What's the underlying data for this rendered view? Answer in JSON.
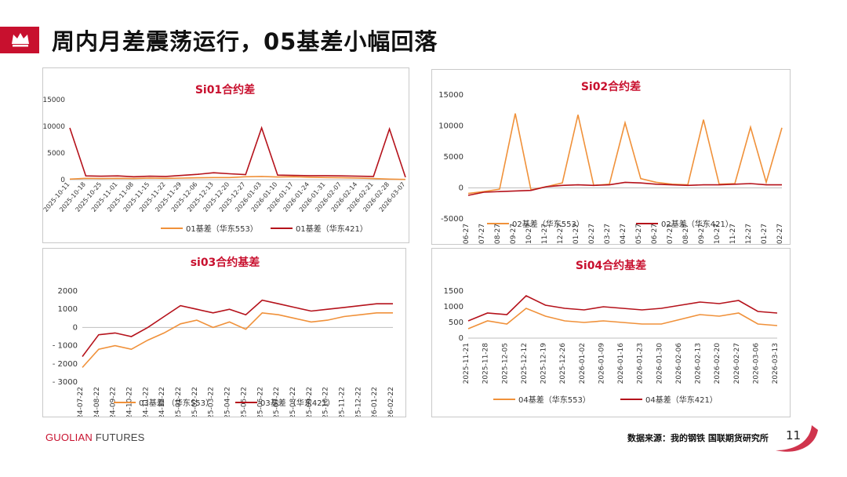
{
  "page": {
    "title": "周内月差震荡运行，05基差小幅回落",
    "brand_a": "GUOLIAN",
    "brand_b": " FUTURES",
    "source": "数据来源：我的钢铁  国联期货研究所",
    "page_number": "11"
  },
  "colors": {
    "accent": "#c8102e",
    "series_553": "#f0913a",
    "series_421": "#b5121b"
  },
  "chart_data": [
    {
      "id": "si01",
      "type": "line",
      "title": "Si01合约差",
      "ylim": [
        0,
        15000
      ],
      "yticks": [
        "0",
        "5000",
        "10000",
        "15000"
      ],
      "xticks": [
        "2025-10-11",
        "2025-10-18",
        "2025-10-25",
        "2025-11-01",
        "2025-11-08",
        "2025-11-15",
        "2025-11-22",
        "2025-11-29",
        "2025-12-06",
        "2025-12-13",
        "2025-12-20",
        "2025-12-27",
        "2026-01-03",
        "2026-01-10",
        "2026-01-17",
        "2026-01-24",
        "2026-01-31",
        "2026-02-07",
        "2026-02-14",
        "2026-02-21",
        "2026-02-28",
        "2026-03-07"
      ],
      "series": [
        {
          "name": "01基差（华东553）",
          "values": [
            100,
            250,
            200,
            250,
            200,
            300,
            250,
            300,
            350,
            400,
            400,
            550,
            600,
            500,
            550,
            450,
            400,
            350,
            300,
            200,
            100,
            50
          ]
        },
        {
          "name": "01基差（华东421）",
          "values": [
            9700,
            700,
            650,
            700,
            550,
            650,
            600,
            800,
            1000,
            1300,
            1100,
            950,
            9700,
            850,
            800,
            750,
            750,
            700,
            650,
            600,
            9500,
            450
          ]
        }
      ]
    },
    {
      "id": "si02",
      "type": "line",
      "title": "Si02合约差",
      "ylim": [
        -5000,
        15000
      ],
      "yticks": [
        "-5000",
        "0",
        "5000",
        "10000",
        "15000"
      ],
      "xticks": [
        "2024-06-27",
        "2024-07-27",
        "2024-08-27",
        "2024-09-27",
        "2024-10-27",
        "2024-11-27",
        "2024-12-27",
        "2025-01-27",
        "2025-02-27",
        "2025-03-27",
        "2025-04-27",
        "2025-05-27",
        "2025-06-27",
        "2025-07-27",
        "2025-08-27",
        "2025-09-27",
        "2025-10-27",
        "2025-11-27",
        "2025-12-27",
        "2026-01-27",
        "2026-02-27"
      ],
      "series": [
        {
          "name": "02基差（华东553）",
          "values": [
            -900,
            -600,
            -200,
            12000,
            -300,
            200,
            800,
            11800,
            400,
            600,
            10500,
            1500,
            900,
            600,
            500,
            11000,
            600,
            700,
            9800,
            900,
            9700
          ]
        },
        {
          "name": "02基差（华东421）",
          "values": [
            -1200,
            -700,
            -600,
            -500,
            -400,
            200,
            400,
            500,
            400,
            500,
            900,
            800,
            600,
            500,
            400,
            500,
            500,
            600,
            700,
            500,
            500
          ]
        }
      ]
    },
    {
      "id": "si03",
      "type": "line",
      "title": "si03合约基差",
      "ylim": [
        -3000,
        2000
      ],
      "yticks": [
        "- 3000",
        "- 2000",
        "- 1000",
        "0",
        "1000",
        "2000"
      ],
      "xticks": [
        "2024-07-22",
        "2024-08-22",
        "2024-09-22",
        "2024-10-22",
        "2024-11-22",
        "2024-12-22",
        "2025-01-22",
        "2025-02-22",
        "2025-03-22",
        "2025-04-22",
        "2025-05-22",
        "2025-06-22",
        "2025-07-22",
        "2025-08-22",
        "2025-09-22",
        "2025-10-22",
        "2025-11-22",
        "2025-12-22",
        "2026-01-22",
        "2026-02-22"
      ],
      "series": [
        {
          "name": "03基差 （华东553）",
          "values": [
            -2200,
            -1200,
            -1000,
            -1200,
            -700,
            -300,
            200,
            400,
            0,
            300,
            -100,
            800,
            700,
            500,
            300,
            400,
            600,
            700,
            800,
            800
          ]
        },
        {
          "name": "03基差 （华东421）",
          "values": [
            -1600,
            -400,
            -300,
            -500,
            0,
            600,
            1200,
            1000,
            800,
            1000,
            700,
            1500,
            1300,
            1100,
            900,
            1000,
            1100,
            1200,
            1300,
            1300
          ]
        }
      ]
    },
    {
      "id": "si04",
      "type": "line",
      "title": "Si04合约基差",
      "ylim": [
        0,
        1500
      ],
      "yticks": [
        "0",
        "500",
        "1000",
        "1500"
      ],
      "xticks": [
        "2025-11-21",
        "2025-11-28",
        "2025-12-05",
        "2025-12-12",
        "2025-12-19",
        "2025-12-26",
        "2026-01-02",
        "2026-01-09",
        "2026-01-16",
        "2026-01-23",
        "2026-01-30",
        "2026-02-06",
        "2026-02-13",
        "2026-02-20",
        "2026-02-27",
        "2026-03-06",
        "2026-03-13"
      ],
      "series": [
        {
          "name": "04基差（华东553）",
          "values": [
            300,
            550,
            450,
            950,
            700,
            550,
            500,
            550,
            500,
            450,
            450,
            600,
            750,
            700,
            800,
            450,
            400
          ]
        },
        {
          "name": "04基差（华东421）",
          "values": [
            550,
            800,
            750,
            1350,
            1050,
            950,
            900,
            1000,
            950,
            900,
            950,
            1050,
            1150,
            1100,
            1200,
            850,
            800
          ]
        }
      ]
    }
  ]
}
